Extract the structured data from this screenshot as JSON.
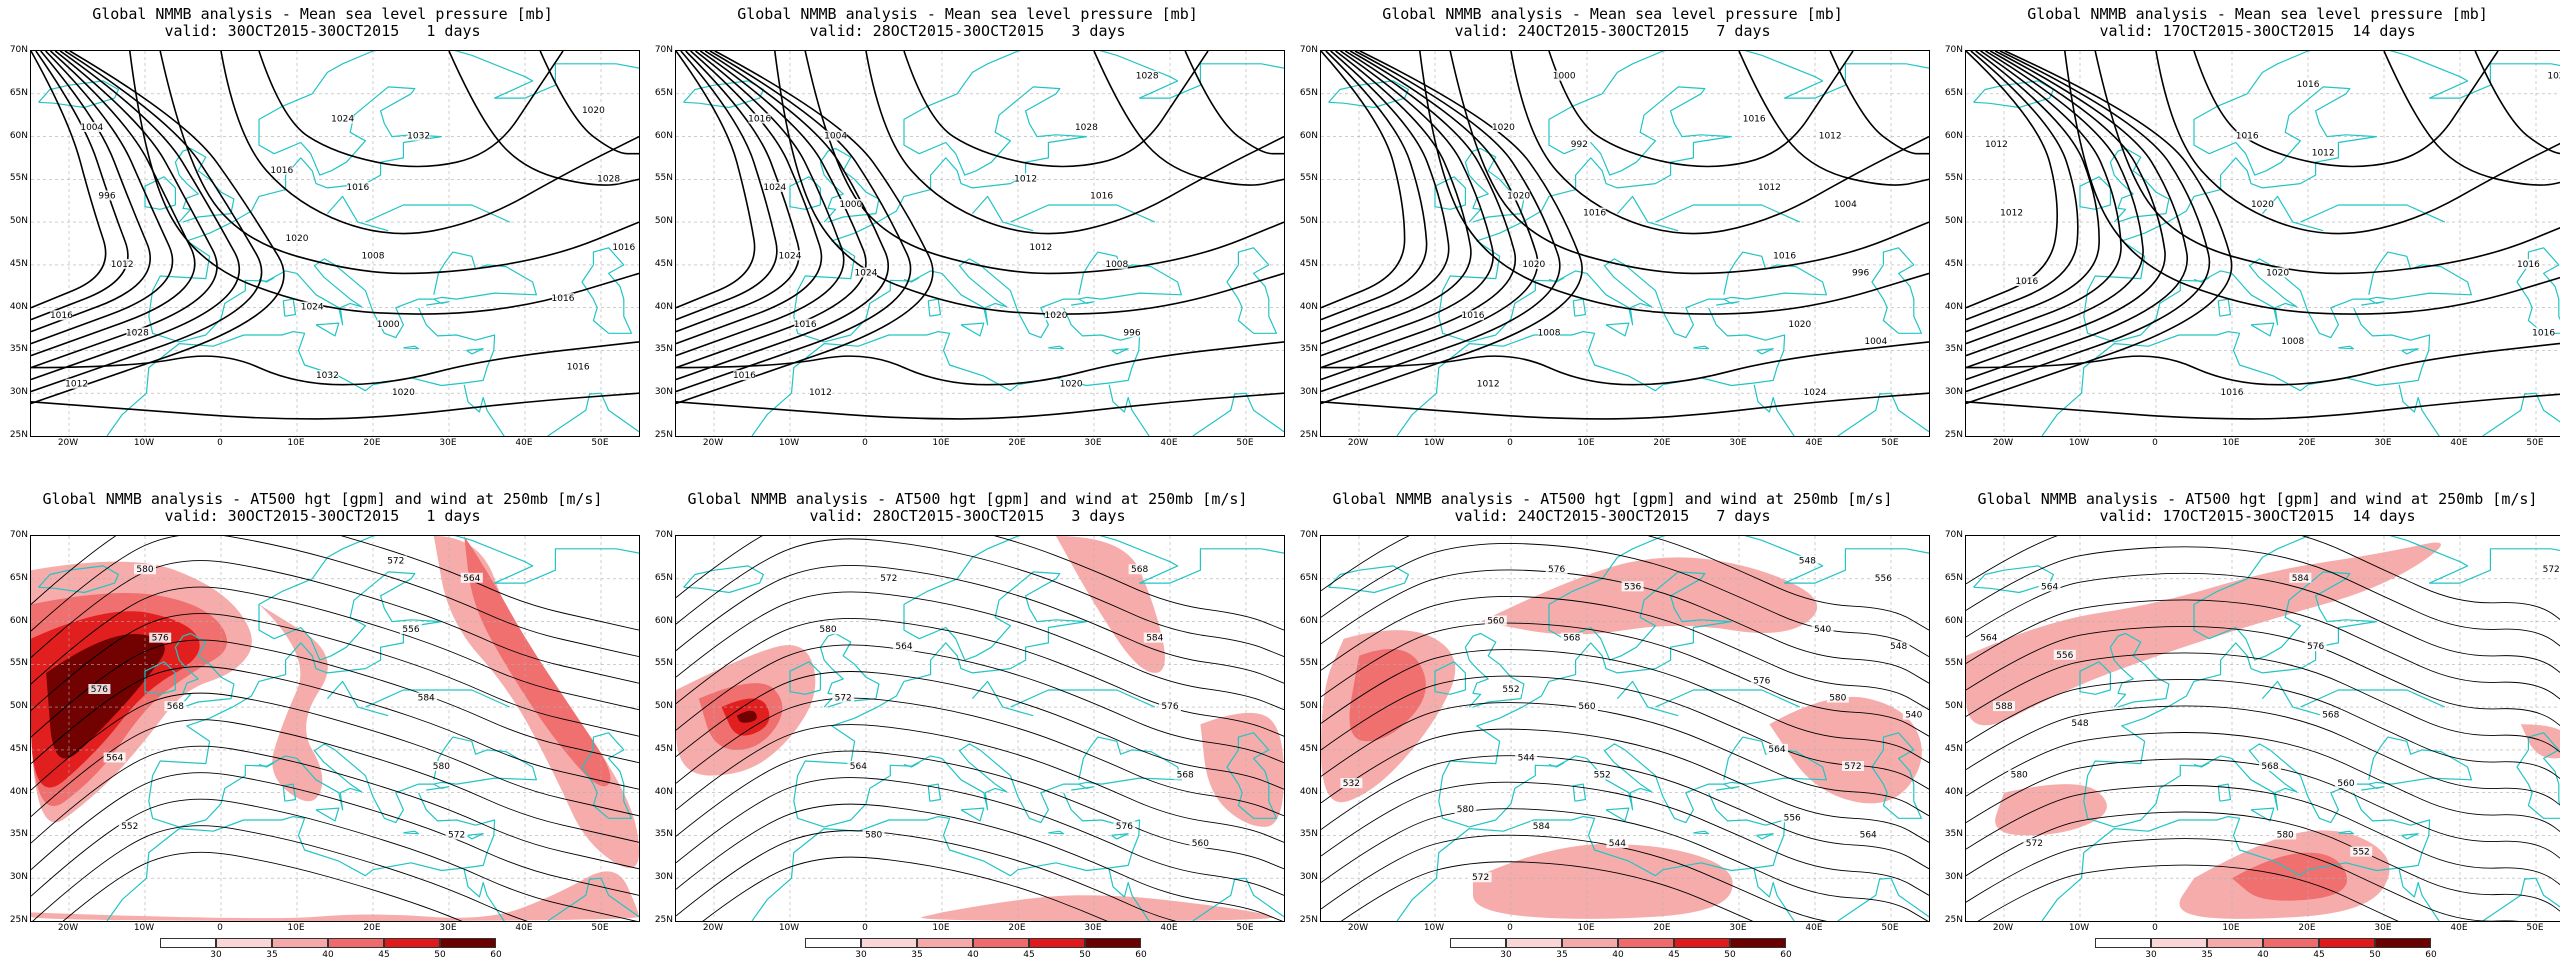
{
  "colors": {
    "coast": "#22c4c4",
    "contour": "#000000",
    "grid": "#b0b0b0",
    "wind": [
      "#ffffff",
      "#fbd6d6",
      "#f7a8a8",
      "#ef6b6b",
      "#e01a1a",
      "#6b0000"
    ]
  },
  "lat_labels": [
    "70N",
    "65N",
    "60N",
    "55N",
    "50N",
    "45N",
    "40N",
    "35N",
    "30N",
    "25N"
  ],
  "lon_labels": [
    "20W",
    "10W",
    "0",
    "10E",
    "20E",
    "30E",
    "40E",
    "50E"
  ],
  "colorbar_labels": [
    "30",
    "35",
    "40",
    "45",
    "50",
    "60"
  ],
  "panels": [
    {
      "id": "mslp-1d",
      "line1": "Global NMMB analysis - Mean sea level pressure [mb]",
      "line2": "valid: 30OCT2015-30OCT2015   1 days",
      "labels": [
        "1028",
        "1032",
        "1012",
        "1020",
        "996",
        "1000",
        "1004",
        "1008",
        "1012",
        "1016",
        "1016",
        "1024",
        "1016",
        "1032",
        "1028",
        "1024",
        "1020",
        "1020",
        "1016",
        "1016",
        "1016"
      ]
    },
    {
      "id": "mslp-3d",
      "line1": "Global NMMB analysis - Mean sea level pressure [mb]",
      "line2": "valid: 28OCT2015-30OCT2015   3 days",
      "labels": [
        "1024",
        "1028",
        "1000",
        "996",
        "1004",
        "1008",
        "1012",
        "1016",
        "1016",
        "1028",
        "1024",
        "1020",
        "1024",
        "1020",
        "1016",
        "1012",
        "1016",
        "1012"
      ]
    },
    {
      "id": "mslp-7d",
      "line1": "Global NMMB analysis - Mean sea level pressure [mb]",
      "line2": "valid: 24OCT2015-30OCT2015   7 days",
      "labels": [
        "1016",
        "1004",
        "992",
        "996",
        "1000",
        "1004",
        "1008",
        "1012",
        "1020",
        "1024",
        "1020",
        "1020",
        "1020",
        "1016",
        "1012",
        "1012",
        "1016",
        "1016"
      ]
    },
    {
      "id": "mslp-14d",
      "line1": "Global NMMB analysis - Mean sea level pressure [mb]",
      "line2": "valid: 17OCT2015-30OCT2015  14 days",
      "labels": [
        "1012",
        "1016",
        "1016",
        "1012",
        "1008",
        "1012",
        "1020",
        "1020",
        "1020",
        "1016",
        "1016",
        "1016",
        "1016"
      ]
    },
    {
      "id": "z500-1d",
      "line1": "Global NMMB analysis - AT500 hgt [gpm] and wind at 250mb [m/s]",
      "line2": "valid: 30OCT2015-30OCT2015   1 days",
      "labels": [
        "564",
        "568",
        "572",
        "576",
        "580",
        "580",
        "584",
        "552",
        "556",
        "564",
        "572",
        "576"
      ]
    },
    {
      "id": "z500-3d",
      "line1": "Global NMMB analysis - AT500 hgt [gpm] and wind at 250mb [m/s]",
      "line2": "valid: 28OCT2015-30OCT2015   3 days",
      "labels": [
        "560",
        "564",
        "568",
        "572",
        "576",
        "580",
        "584",
        "564",
        "568",
        "572",
        "576",
        "580"
      ]
    },
    {
      "id": "z500-7d",
      "line1": "Global NMMB analysis - AT500 hgt [gpm] and wind at 250mb [m/s]",
      "line2": "valid: 24OCT2015-30OCT2015   7 days",
      "labels": [
        "532",
        "536",
        "540",
        "544",
        "548",
        "552",
        "556",
        "560",
        "564",
        "568",
        "572",
        "576",
        "580",
        "584",
        "540",
        "544",
        "548",
        "552",
        "556",
        "560",
        "564",
        "572",
        "576",
        "580"
      ]
    },
    {
      "id": "z500-14d",
      "line1": "Global NMMB analysis - AT500 hgt [gpm] and wind at 250mb [m/s]",
      "line2": "valid: 17OCT2015-30OCT2015  14 days",
      "labels": [
        "548",
        "552",
        "556",
        "560",
        "564",
        "568",
        "572",
        "576",
        "580",
        "584",
        "588",
        "580",
        "564",
        "568",
        "572"
      ]
    }
  ]
}
